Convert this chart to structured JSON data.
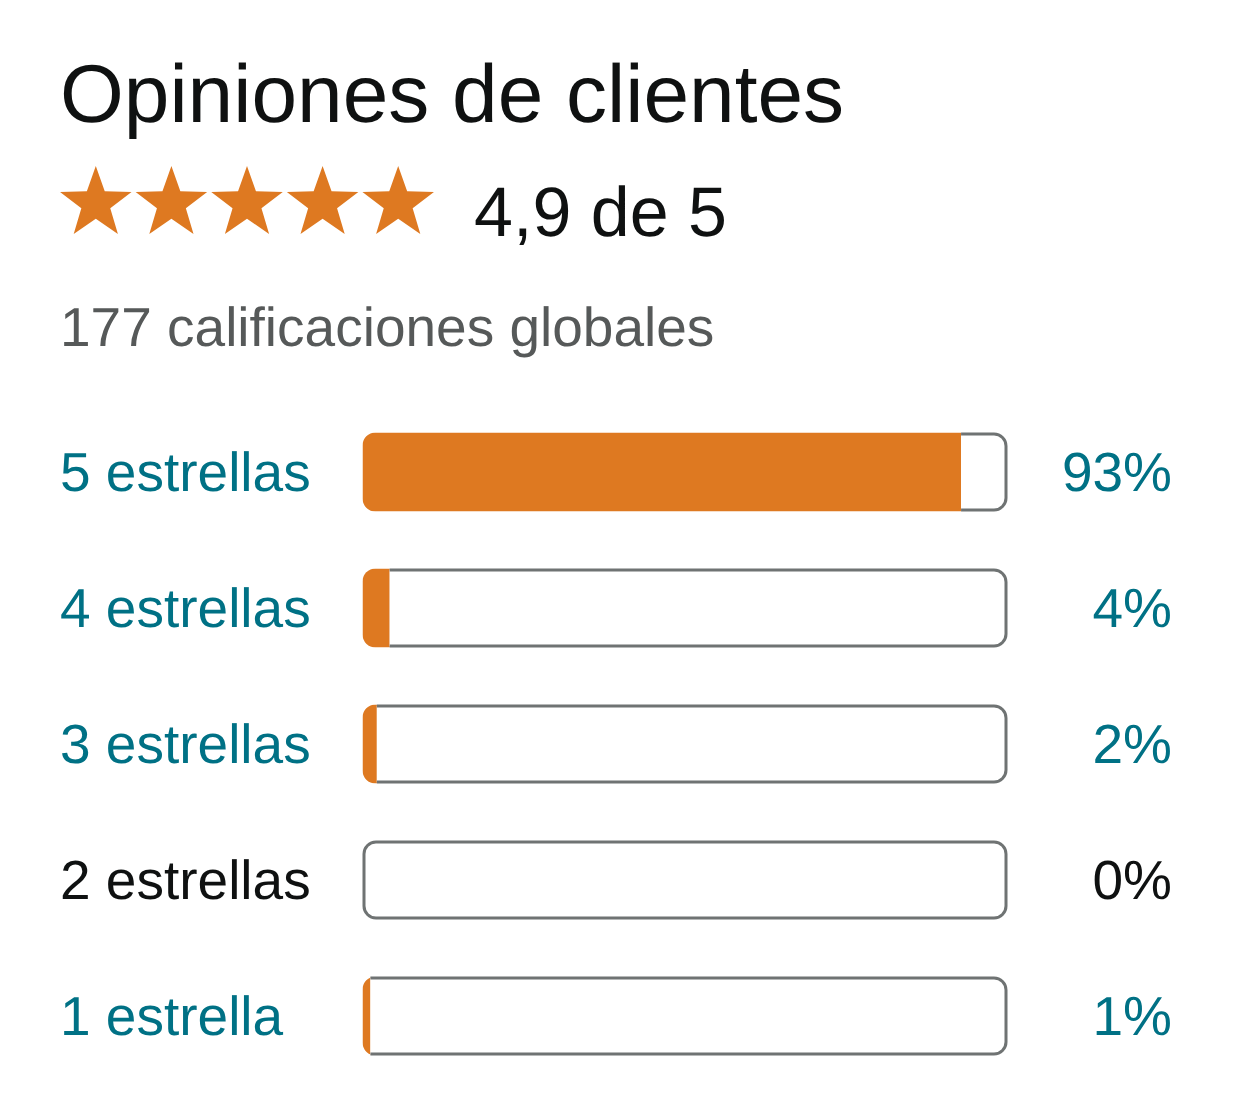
{
  "chart_data": {
    "type": "bar",
    "orientation": "horizontal",
    "stacked": true,
    "title": "Opiniones de clientes",
    "subtitle": "177 calificaciones globales",
    "annotations": [
      "4,9 de 5"
    ],
    "categories": [
      "5 estrellas",
      "4 estrellas",
      "3 estrellas",
      "2 estrellas",
      "1 estrella"
    ],
    "series": [
      {
        "color": "#de7921",
        "values": [
          93,
          4,
          2,
          0,
          1
        ],
        "value_labels": [
          "93%",
          "4%",
          "2%",
          "0%",
          "1%"
        ]
      },
      {
        "color": "#ffffff",
        "values": [
          7,
          96,
          98,
          100,
          99
        ]
      }
    ],
    "xlim": [
      0,
      100
    ],
    "tick_labels": "y"
  }
}
